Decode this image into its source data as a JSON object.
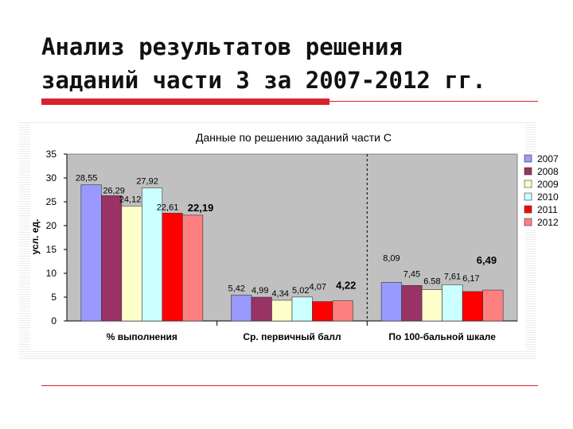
{
  "slide": {
    "title_line1": "Анализ результатов решения",
    "title_line2": "заданий части 3 за 2007-2012 гг."
  },
  "colors": {
    "accent_red": "#d9212b",
    "plot_bg": "#c0c0c0"
  },
  "chart_data": {
    "type": "bar",
    "title": "Данные по решению заданий части С",
    "ylabel": "усл. ед.",
    "xlabel": "",
    "ylim": [
      0,
      35
    ],
    "yticks": [
      0,
      5,
      10,
      15,
      20,
      25,
      30,
      35
    ],
    "grid": false,
    "legend_position": "right",
    "categories": [
      "% выполнения",
      "Ср. первичный балл",
      "По 100-бальной шкале"
    ],
    "series": [
      {
        "name": "2007",
        "color": "#9999ff",
        "values": [
          28.55,
          5.42,
          8.09
        ],
        "labels": [
          "28,55",
          "5,42",
          "8,09"
        ]
      },
      {
        "name": "2008",
        "color": "#993366",
        "values": [
          26.29,
          4.99,
          7.45
        ],
        "labels": [
          "26,29",
          "4,99",
          "7,45"
        ]
      },
      {
        "name": "2009",
        "color": "#ffffcc",
        "values": [
          24.12,
          4.34,
          6.58
        ],
        "labels": [
          "24,12",
          "4,34",
          "6.58"
        ]
      },
      {
        "name": "2010",
        "color": "#ccffff",
        "values": [
          27.92,
          5.02,
          7.61
        ],
        "labels": [
          "27,92",
          "5,02",
          "7,61"
        ]
      },
      {
        "name": "2011",
        "color": "#ff0000",
        "values": [
          22.61,
          4.07,
          6.17
        ],
        "labels": [
          "22,61",
          "4,07",
          "6,17"
        ]
      },
      {
        "name": "2012",
        "color": "#ff8080",
        "values": [
          22.19,
          4.22,
          6.49
        ],
        "labels": [
          "22,19",
          "4,22",
          "6,49"
        ]
      }
    ]
  }
}
